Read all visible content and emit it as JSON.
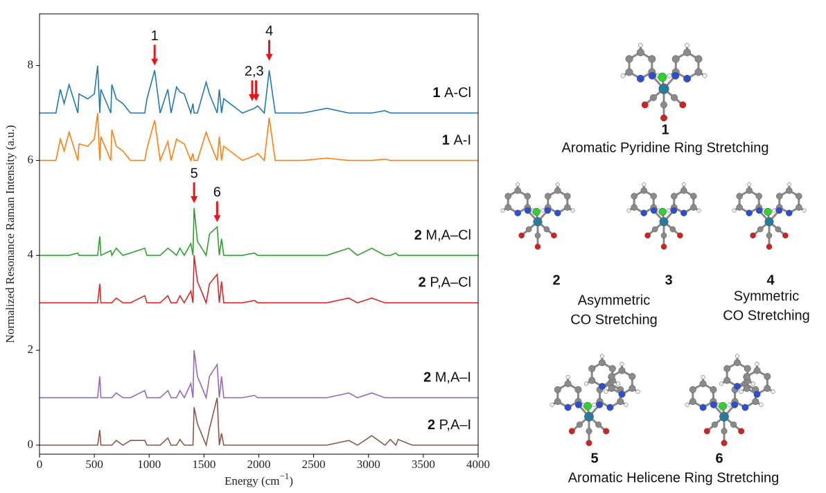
{
  "chart_data": {
    "type": "line",
    "xlabel": {
      "text": "Energy (cm",
      "sup": "−1",
      "close": ")"
    },
    "ylabel": "Normalized Resonance Raman Intensity (a.u.)",
    "xlim": [
      0,
      4000
    ],
    "xticks": [
      0,
      500,
      1000,
      1500,
      2000,
      2500,
      3000,
      3500,
      4000
    ],
    "ylim": [
      -0.19,
      9.09
    ],
    "yticks": [
      0,
      2,
      4,
      6,
      8
    ],
    "x": [
      0,
      150,
      190,
      225,
      270,
      350,
      360,
      440,
      500,
      530,
      550,
      560,
      650,
      660,
      700,
      760,
      830,
      960,
      980,
      1050,
      1100,
      1170,
      1200,
      1250,
      1280,
      1320,
      1380,
      1400,
      1410,
      1440,
      1520,
      1550,
      1620,
      1640,
      1660,
      1680,
      1850,
      1960,
      1990,
      2050,
      2095,
      2150,
      2400,
      2620,
      2820,
      2900,
      3030,
      3150,
      3200,
      3250,
      3270,
      3400,
      4000
    ],
    "series": [
      {
        "compound": "1",
        "name": "A-Cl",
        "color": "#1f77b4",
        "values": [
          7,
          7,
          7.5,
          7.2,
          7.6,
          7,
          7.4,
          7.3,
          7.4,
          8,
          7,
          7.5,
          7,
          7.6,
          7.3,
          7.2,
          7,
          7,
          7.3,
          7.9,
          7,
          7.5,
          7,
          7.55,
          7.45,
          7.4,
          7,
          7.2,
          7,
          7,
          7.65,
          7.4,
          7,
          7.5,
          7,
          7.3,
          7,
          7.1,
          7.15,
          7,
          7.9,
          7,
          7,
          7.1,
          7,
          7,
          7,
          7.05,
          7,
          7,
          7,
          7,
          7
        ]
      },
      {
        "compound": "1",
        "name": "A-I",
        "color": "#ff7f0e",
        "values": [
          6,
          6,
          6.45,
          6.2,
          6.6,
          6,
          6.35,
          6.3,
          6.45,
          7,
          6,
          6.5,
          6,
          6.65,
          6.3,
          6.2,
          6,
          6,
          6.25,
          6.85,
          6,
          6.4,
          6,
          6.45,
          6.4,
          6.35,
          6,
          6.15,
          6,
          6,
          6.6,
          6.4,
          6,
          6.5,
          6,
          6.3,
          6,
          6.1,
          6.15,
          6,
          6.9,
          6,
          6,
          6.05,
          6,
          6,
          6,
          6.03,
          6,
          6,
          6,
          6,
          6
        ]
      },
      {
        "compound": "2",
        "name": "M,A–Cl",
        "color": "#2ca02c",
        "values": [
          4,
          4,
          4,
          4,
          4,
          4.05,
          4,
          4,
          4,
          4,
          4.4,
          4,
          4.1,
          4,
          4.15,
          4,
          4.05,
          4.15,
          4,
          4,
          4,
          4.15,
          4.1,
          4,
          4.15,
          4,
          4.25,
          4,
          5,
          4.3,
          4,
          4.45,
          4.6,
          4,
          4.35,
          4,
          4,
          4.05,
          4,
          4,
          4,
          4,
          4,
          4,
          4.15,
          4,
          4.15,
          4,
          4,
          4.05,
          4,
          4,
          4
        ]
      },
      {
        "compound": "2",
        "name": "P,A–Cl",
        "color": "#d62728",
        "values": [
          3,
          3,
          3,
          3,
          3,
          3,
          3,
          3,
          3,
          3,
          3.4,
          3,
          3,
          3,
          3.1,
          3,
          3,
          3.15,
          3,
          3,
          3,
          3.15,
          3,
          3,
          3.15,
          3,
          3.25,
          3,
          4,
          3.45,
          3,
          3.4,
          3.6,
          3,
          3.45,
          3,
          3,
          3.05,
          3,
          3,
          3,
          3,
          3,
          3,
          3.1,
          3,
          3.1,
          3,
          3,
          3,
          3,
          3,
          3
        ]
      },
      {
        "compound": "2",
        "name": "M,A–I",
        "color": "#9467bd",
        "values": [
          1,
          1,
          1,
          1,
          1,
          1,
          1,
          1,
          1,
          1,
          1.45,
          1,
          1,
          1,
          1.1,
          1,
          1,
          1.15,
          1,
          1,
          1,
          1.15,
          1,
          1,
          1.15,
          1,
          1.3,
          1,
          2,
          1.45,
          1,
          1.45,
          1.7,
          1,
          1.45,
          1,
          1,
          1.05,
          1,
          1,
          1,
          1,
          1,
          1,
          1.1,
          1,
          1.1,
          1,
          1,
          1,
          1,
          1,
          1
        ]
      },
      {
        "compound": "2",
        "name": "P,A–I",
        "color": "#8c564b",
        "values": [
          0,
          0,
          0,
          0,
          0,
          0,
          0,
          0,
          0,
          0,
          0.32,
          0,
          0,
          0,
          0.1,
          0,
          0.1,
          0.1,
          0,
          0,
          0,
          0.15,
          0,
          0,
          0.12,
          0,
          0,
          0,
          0.8,
          0.45,
          0,
          0.35,
          1,
          0,
          0.25,
          0,
          0,
          0,
          0,
          0,
          0,
          0,
          0,
          0,
          0.1,
          0,
          0.2,
          0,
          0.12,
          0,
          0.12,
          0,
          0
        ]
      }
    ],
    "annotations": [
      {
        "text": "1",
        "x": [
          1050
        ],
        "y": 8.0
      },
      {
        "text": "2,3",
        "x": [
          1940,
          1975
        ],
        "y": 7.25
      },
      {
        "text": "4",
        "x": [
          2095
        ],
        "y": 8.1
      },
      {
        "text": "5",
        "x": [
          1410
        ],
        "y": 5.1
      },
      {
        "text": "6",
        "x": [
          1620
        ],
        "y": 4.7
      }
    ],
    "annotation_color": "#e8141b"
  },
  "diagram": {
    "mode1": {
      "label": "1",
      "text": "Aromatic Pyridine Ring Stretching"
    },
    "mode2": {
      "label": "2"
    },
    "mode3": {
      "label": "3"
    },
    "mode4": {
      "label": "4"
    },
    "asym": [
      "Asymmetric",
      "CO Stretching"
    ],
    "sym": [
      "Symmetric",
      "CO Stretching"
    ],
    "mode5": {
      "label": "5"
    },
    "mode6": {
      "label": "6"
    },
    "helicene": "Aromatic Helicene Ring Stretching"
  }
}
